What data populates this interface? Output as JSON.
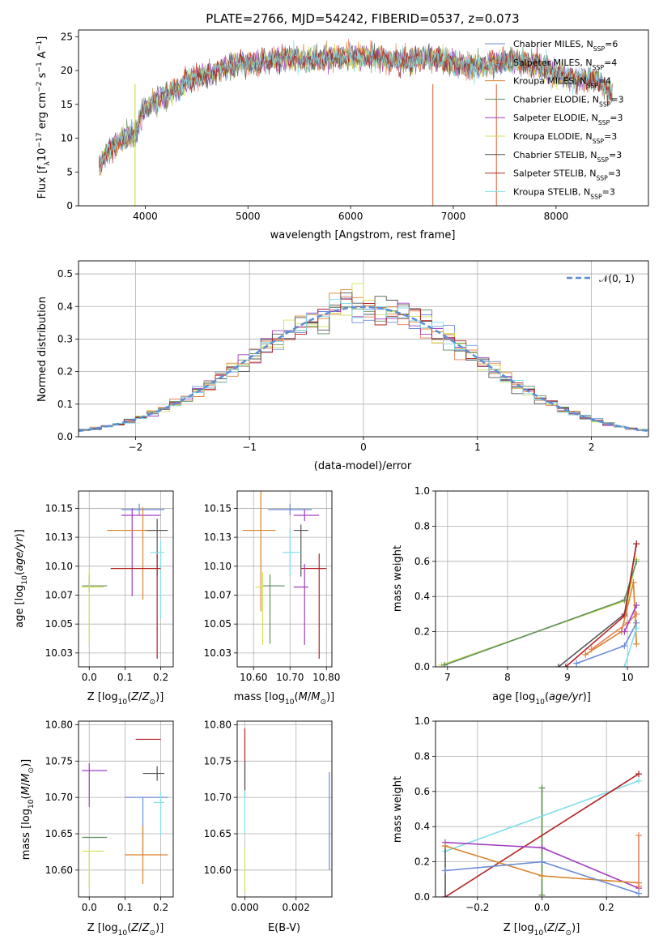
{
  "figure_title": "PLATE=2766, MJD=54242, FIBERID=0537, z=0.073",
  "legend_entries": [
    {
      "name": "Chabrier MILES, N",
      "sub": "SSP",
      "tail": "=6",
      "color": "#6a8bd6"
    },
    {
      "name": "Salpeter MILES, N",
      "sub": "SSP",
      "tail": "=4",
      "color": "#e8825a"
    },
    {
      "name": "Kroupa MILES, N",
      "sub": "SSP",
      "tail": "=4",
      "color": "#d9822b"
    },
    {
      "name": "Chabrier ELODIE, N",
      "sub": "SSP",
      "tail": "=3",
      "color": "#5f8f5f"
    },
    {
      "name": "Salpeter ELODIE, N",
      "sub": "SSP",
      "tail": "=3",
      "color": "#a33fc0"
    },
    {
      "name": "Kroupa ELODIE, N",
      "sub": "SSP",
      "tail": "=3",
      "color": "#d4e157"
    },
    {
      "name": "Chabrier STELIB, N",
      "sub": "SSP",
      "tail": "=3",
      "color": "#555555"
    },
    {
      "name": "Salpeter STELIB, N",
      "sub": "SSP",
      "tail": "=3",
      "color": "#b22222"
    },
    {
      "name": "Kroupa STELIB, N",
      "sub": "SSP",
      "tail": "=3",
      "color": "#80deea"
    }
  ],
  "chart_data": [
    {
      "id": "spectrum",
      "type": "line",
      "xlabel": "wavelength [Angstrom, rest frame]",
      "ylabel_prefix": "Flux [f",
      "ylabel_lambda": "λ",
      "ylabel_mid": "10",
      "ylabel_exp": "−17",
      "ylabel_unit": "erg cm",
      "ylabel_exp2": "−2",
      "ylabel_s": "s",
      "ylabel_exp3": "−1",
      "ylabel_A": "A",
      "ylabel_exp4": "−1",
      "ylabel_end": "]",
      "xlim": [
        3350,
        8900
      ],
      "ylim": [
        0,
        26
      ],
      "xticks": [
        4000,
        5000,
        6000,
        7000,
        8000
      ],
      "yticks": [
        0,
        5,
        10,
        15,
        20,
        25
      ],
      "continuum_x": [
        3550,
        3600,
        3700,
        3800,
        3900,
        3950,
        4000,
        4100,
        4200,
        4300,
        4400,
        4500,
        4600,
        4700,
        4800,
        4900,
        5000,
        5200,
        5400,
        5600,
        5800,
        6000,
        6200,
        6400,
        6600,
        6800,
        7000,
        7200,
        7400,
        7600,
        7800,
        8000,
        8200,
        8400,
        8550
      ],
      "continuum_y": [
        6.0,
        7.5,
        9.0,
        10.0,
        10.5,
        13.0,
        14.5,
        15.5,
        16.5,
        17.0,
        18.5,
        19.0,
        19.5,
        20.0,
        20.5,
        21.0,
        21.0,
        21.5,
        22.0,
        21.5,
        22.0,
        22.0,
        22.0,
        21.5,
        21.5,
        22.0,
        21.0,
        20.5,
        21.0,
        21.5,
        21.0,
        19.5,
        19.0,
        18.5,
        16.5
      ],
      "glitches": [
        {
          "series": "Kroupa ELODIE",
          "x": 3900
        },
        {
          "series": "Kroupa ELODIE",
          "x": 6800
        },
        {
          "series": "Salpeter MILES",
          "x": 6800
        },
        {
          "series": "Salpeter MILES",
          "x": 7420
        }
      ]
    },
    {
      "id": "residuals",
      "type": "histogram",
      "xlabel": "(data-model)/error",
      "ylabel": "Normed distribution",
      "xlim": [
        -2.5,
        2.5
      ],
      "ylim": [
        0,
        0.54
      ],
      "xticks": [
        -2,
        -1,
        0,
        1,
        2
      ],
      "yticks": [
        0.0,
        0.1,
        0.2,
        0.3,
        0.4,
        0.5
      ],
      "bin_width": 0.1,
      "reference": {
        "name": "𝒩(0, 1)",
        "color": "#5b8ed6"
      }
    },
    {
      "id": "age_vs_Z",
      "type": "errorbar",
      "xlabel": "Z [log",
      "xlabel_sub": "10",
      "xlabel_tail": "(Z/Z",
      "xlabel_sun": "⊙",
      "xlabel_end": ")]",
      "ylabel": "age  [log",
      "ylabel_sub": "10",
      "ylabel_tail": "(age/yr)]",
      "xlim": [
        -0.03,
        0.235
      ],
      "ylim": [
        10.013,
        10.165
      ],
      "xticks": [
        0.0,
        0.1,
        0.2
      ],
      "yticks": [
        10.025,
        10.05,
        10.075,
        10.1,
        10.125,
        10.15
      ],
      "points": [
        {
          "series": "Chabrier MILES",
          "x": 0.14,
          "xerr": [
            0.05,
            0.07
          ],
          "y": 10.149,
          "yerr": [
            0.005,
            0.005
          ]
        },
        {
          "series": "Salpeter ELODIE",
          "x": 0.12,
          "xerr": [
            0.03,
            0.08
          ],
          "y": 10.144,
          "yerr": [
            0.07,
            0.006
          ]
        },
        {
          "series": "Kroupa MILES",
          "x": 0.15,
          "xerr": [
            0.1,
            0.07
          ],
          "y": 10.131,
          "yerr": [
            0.06,
            0.02
          ]
        },
        {
          "series": "Chabrier STELIB",
          "x": 0.19,
          "xerr": [
            0.03,
            0.03
          ],
          "y": 10.131,
          "yerr": [
            0.04,
            0.01
          ]
        },
        {
          "series": "Kroupa STELIB",
          "x": 0.2,
          "xerr": [
            0.03,
            0.01
          ],
          "y": 10.112,
          "yerr": [
            0.057,
            0.01
          ]
        },
        {
          "series": "Salpeter STELIB",
          "x": 0.19,
          "xerr": [
            0.13,
            0.01
          ],
          "y": 10.098,
          "yerr": [
            0.078,
            0.012
          ]
        },
        {
          "series": "Chabrier ELODIE",
          "x": 0.0,
          "xerr": [
            0.02,
            0.05
          ],
          "y": 10.083,
          "yerr": [
            0.005,
            0.01
          ]
        },
        {
          "series": "Kroupa ELODIE",
          "x": 0.0,
          "xerr": [
            0.02,
            0.04
          ],
          "y": 10.082,
          "yerr": [
            0.05,
            0.015
          ]
        }
      ]
    },
    {
      "id": "age_vs_mass",
      "type": "errorbar",
      "xlabel": "mass [log",
      "xlabel_sub": "10",
      "xlabel_tail": "(M/M",
      "xlabel_sun": "⊙",
      "xlabel_end": ")]",
      "xlim": [
        10.555,
        10.815
      ],
      "ylim": [
        10.013,
        10.165
      ],
      "xticks": [
        10.6,
        10.7,
        10.8
      ],
      "yticks": [
        10.025,
        10.05,
        10.075,
        10.1,
        10.125,
        10.15
      ],
      "points": [
        {
          "series": "Chabrier MILES",
          "x": 10.7,
          "xerr": [
            0.06,
            0.06
          ],
          "y": 10.149,
          "yerr": [
            0.005,
            0.005
          ]
        },
        {
          "series": "Salpeter ELODIE",
          "x": 10.74,
          "xerr": [
            0.03,
            0.04
          ],
          "y": 10.144,
          "yerr": [
            0.005,
            0.005
          ]
        },
        {
          "series": "Kroupa MILES",
          "x": 10.62,
          "xerr": [
            0.05,
            0.04
          ],
          "y": 10.131,
          "yerr": [
            0.07,
            0.035
          ]
        },
        {
          "series": "Chabrier STELIB",
          "x": 10.73,
          "xerr": [
            0.02,
            0.02
          ],
          "y": 10.131,
          "yerr": [
            0.04,
            0.005
          ]
        },
        {
          "series": "Kroupa STELIB",
          "x": 10.7,
          "xerr": [
            0.02,
            0.03
          ],
          "y": 10.112,
          "yerr": [
            0.02,
            0.02
          ]
        },
        {
          "series": "Salpeter STELIB",
          "x": 10.78,
          "xerr": [
            0.05,
            0.02
          ],
          "y": 10.098,
          "yerr": [
            0.078,
            0.013
          ]
        },
        {
          "series": "Salpeter ELODIE",
          "x": 10.74,
          "xerr": [
            0.03,
            0.01
          ],
          "y": 10.082,
          "yerr": [
            0.05,
            0.02
          ]
        },
        {
          "series": "Chabrier ELODIE",
          "x": 10.645,
          "xerr": [
            0.02,
            0.04
          ],
          "y": 10.083,
          "yerr": [
            0.05,
            0.01
          ]
        },
        {
          "series": "Kroupa ELODIE",
          "x": 10.625,
          "xerr": [
            0.02,
            0.0
          ],
          "y": 10.082,
          "yerr": [
            0.05,
            0.013
          ]
        }
      ]
    },
    {
      "id": "massweight_vs_age",
      "type": "line",
      "xlabel": "age  [log",
      "xlabel_sub": "10",
      "xlabel_tail": "(age/yr)]",
      "ylabel": "mass weight",
      "xlim": [
        6.8,
        10.35
      ],
      "ylim": [
        0,
        1
      ],
      "xticks": [
        7,
        8,
        9,
        10
      ],
      "yticks": [
        0.0,
        0.2,
        0.4,
        0.6,
        0.8,
        1.0
      ],
      "series": [
        {
          "name": "Kroupa ELODIE",
          "x": [
            6.9,
            10.0,
            10.15
          ],
          "y": [
            0.01,
            0.38,
            0.61
          ]
        },
        {
          "name": "Chabrier ELODIE",
          "x": [
            6.95,
            9.95,
            10.15
          ],
          "y": [
            0.01,
            0.38,
            0.6
          ]
        },
        {
          "name": "Chabrier STELIB",
          "x": [
            8.85,
            9.95,
            10.15
          ],
          "y": [
            0.0,
            0.3,
            0.7
          ]
        },
        {
          "name": "Salpeter STELIB",
          "x": [
            8.97,
            9.95,
            10.15
          ],
          "y": [
            0.0,
            0.29,
            0.7
          ]
        },
        {
          "name": "Chabrier MILES",
          "x": [
            9.15,
            9.95,
            10.15
          ],
          "y": [
            0.02,
            0.12,
            0.25
          ]
        },
        {
          "name": "Kroupa MILES",
          "x": [
            9.3,
            9.9,
            10.1,
            10.15
          ],
          "y": [
            0.07,
            0.2,
            0.48,
            0.13
          ]
        },
        {
          "name": "Salpeter MILES",
          "x": [
            9.4,
            10.0,
            10.15
          ],
          "y": [
            0.1,
            0.25,
            0.3
          ]
        },
        {
          "name": "Salpeter ELODIE",
          "x": [
            9.95,
            10.15
          ],
          "y": [
            0.2,
            0.35
          ]
        },
        {
          "name": "Kroupa STELIB",
          "x": [
            9.95,
            10.15
          ],
          "y": [
            0.0,
            0.22
          ]
        }
      ]
    },
    {
      "id": "mass_vs_Z",
      "type": "errorbar",
      "xlabel": "Z [log",
      "xlabel_sub": "10",
      "xlabel_tail": "(Z/Z",
      "xlabel_sun": "⊙",
      "xlabel_end": ")]",
      "ylabel": "mass [log",
      "ylabel_sub": "10",
      "ylabel_tail": "(M/M",
      "ylabel_sun": "⊙",
      "ylabel_end": ")]",
      "xlim": [
        -0.03,
        0.235
      ],
      "ylim": [
        10.563,
        10.805
      ],
      "xticks": [
        0.0,
        0.1,
        0.2
      ],
      "yticks": [
        10.6,
        10.65,
        10.7,
        10.75,
        10.8
      ],
      "points": [
        {
          "series": "Salpeter STELIB",
          "x": 0.19,
          "xerr": [
            0.06,
            0.01
          ],
          "y": 10.78,
          "yerr": [
            0.0,
            0.0
          ]
        },
        {
          "series": "Salpeter ELODIE",
          "x": 0.0,
          "xerr": [
            0.02,
            0.05
          ],
          "y": 10.737,
          "yerr": [
            0.05,
            0.01
          ]
        },
        {
          "series": "Chabrier STELIB",
          "x": 0.19,
          "xerr": [
            0.04,
            0.02
          ],
          "y": 10.733,
          "yerr": [
            0.01,
            0.01
          ]
        },
        {
          "series": "Chabrier MILES",
          "x": 0.15,
          "xerr": [
            0.05,
            0.07
          ],
          "y": 10.7,
          "yerr": [
            0.08,
            0.0
          ]
        },
        {
          "series": "Kroupa STELIB",
          "x": 0.2,
          "xerr": [
            0.02,
            0.01
          ],
          "y": 10.693,
          "yerr": [
            0.045,
            0.015
          ]
        },
        {
          "series": "Chabrier ELODIE",
          "x": 0.0,
          "xerr": [
            0.02,
            0.05
          ],
          "y": 10.645,
          "yerr": [
            0.0,
            0.0
          ]
        },
        {
          "series": "Kroupa ELODIE",
          "x": 0.0,
          "xerr": [
            0.02,
            0.04
          ],
          "y": 10.626,
          "yerr": [
            0.05,
            0.0
          ]
        },
        {
          "series": "Kroupa MILES",
          "x": 0.15,
          "xerr": [
            0.05,
            0.07
          ],
          "y": 10.621,
          "yerr": [
            0.04,
            0.04
          ]
        }
      ]
    },
    {
      "id": "mass_vs_ebv",
      "type": "errorbar",
      "xlabel": "E(B-V)",
      "xlim": [
        -0.0003,
        0.0034
      ],
      "ylim": [
        10.563,
        10.805
      ],
      "xticks": [
        0.0,
        0.002
      ],
      "yticks": [
        10.6,
        10.65,
        10.7,
        10.75,
        10.8
      ],
      "points": [
        {
          "series": "Salpeter STELIB",
          "x": 0.0,
          "xerr": [
            0,
            0
          ],
          "y": 10.75,
          "yerr": [
            0.05,
            0.045
          ]
        },
        {
          "series": "Chabrier STELIB",
          "x": 0.0,
          "xerr": [
            0,
            0
          ],
          "y": 10.73,
          "yerr": [
            0.02,
            0.02
          ]
        },
        {
          "series": "Kroupa STELIB",
          "x": 0.0,
          "xerr": [
            0,
            0
          ],
          "y": 10.69,
          "yerr": [
            0.04,
            0.02
          ]
        },
        {
          "series": "Kroupa ELODIE",
          "x": 0.0,
          "xerr": [
            0,
            0
          ],
          "y": 10.62,
          "yerr": [
            0.05,
            0.01
          ]
        },
        {
          "series": "Chabrier MILES",
          "x": 0.0033,
          "xerr": [
            0,
            0
          ],
          "y": 10.7,
          "yerr": [
            0.1,
            0.035
          ]
        }
      ]
    },
    {
      "id": "massweight_vs_Z",
      "type": "line",
      "xlabel": "Z [log",
      "xlabel_sub": "10",
      "xlabel_tail": "(Z/Z",
      "xlabel_sun": "⊙",
      "xlabel_end": ")]",
      "ylabel": "mass weight",
      "xlim": [
        -0.33,
        0.33
      ],
      "ylim": [
        0,
        1
      ],
      "xticks": [
        -0.2,
        0.0,
        0.2
      ],
      "yticks": [
        0.0,
        0.2,
        0.4,
        0.6,
        0.8,
        1.0
      ],
      "series": [
        {
          "name": "Kroupa ELODIE",
          "x": [
            0.0,
            0.0
          ],
          "y": [
            0.01,
            0.62
          ]
        },
        {
          "name": "Chabrier ELODIE",
          "x": [
            0.0,
            0.0
          ],
          "y": [
            0.01,
            0.62
          ]
        },
        {
          "name": "Kroupa STELIB",
          "x": [
            -0.3,
            0.3
          ],
          "y": [
            0.26,
            0.66
          ]
        },
        {
          "name": "Salpeter STELIB",
          "x": [
            -0.3,
            0.3
          ],
          "y": [
            0.0,
            0.7
          ]
        },
        {
          "name": "Chabrier STELIB",
          "x": [
            -0.3,
            -0.3
          ],
          "y": [
            0.0,
            0.29
          ]
        },
        {
          "name": "Salpeter ELODIE",
          "x": [
            -0.3,
            0.0,
            0.3
          ],
          "y": [
            0.31,
            0.28,
            0.05
          ]
        },
        {
          "name": "Kroupa MILES",
          "x": [
            -0.3,
            0.0,
            0.3
          ],
          "y": [
            0.29,
            0.12,
            0.08
          ]
        },
        {
          "name": "Chabrier MILES",
          "x": [
            -0.3,
            0.0,
            0.3
          ],
          "y": [
            0.15,
            0.2,
            0.02
          ]
        },
        {
          "name": "Salpeter MILES",
          "x": [
            0.3,
            0.3
          ],
          "y": [
            0.06,
            0.35
          ]
        }
      ]
    }
  ]
}
